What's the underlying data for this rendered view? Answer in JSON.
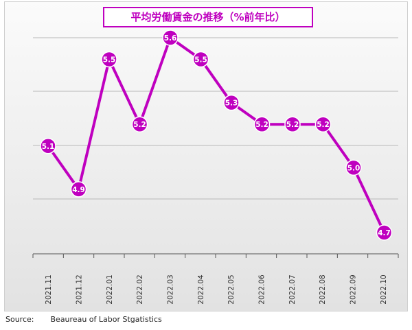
{
  "chart_data": {
    "type": "line",
    "title": "平均労働賃金の推移（%前年比）",
    "categories": [
      "2021.11",
      "2021.12",
      "2022.01",
      "2022.02",
      "2022.03",
      "2022.04",
      "2022.05",
      "2022.06",
      "2022.07",
      "2022.08",
      "2022.09",
      "2022.10"
    ],
    "series": [
      {
        "values": [
          5.1,
          4.9,
          5.5,
          5.2,
          5.6,
          5.5,
          5.3,
          5.2,
          5.2,
          5.2,
          5.0,
          4.7
        ]
      }
    ],
    "ylim": [
      4.6,
      5.6
    ],
    "grid": true,
    "legend": "none",
    "colors": {
      "line": "#bf00bf",
      "marker_text": "#ffffff"
    }
  },
  "source": {
    "label": "Source:",
    "text": "Beaureau of Labor Stgatistics"
  }
}
